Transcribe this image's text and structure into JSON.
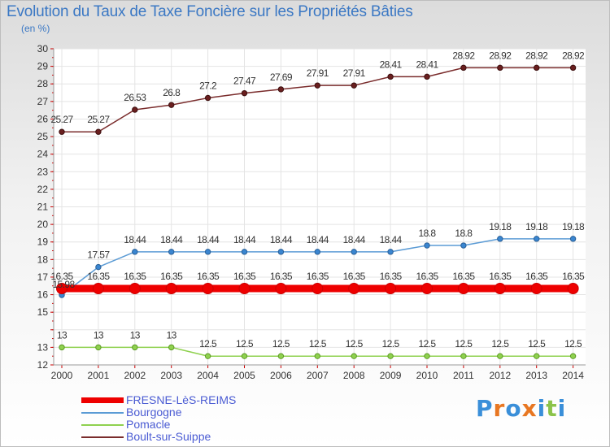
{
  "title": "Evolution du Taux de Taxe Foncière sur les Propriétés Bâties",
  "unit": "(en %)",
  "logo": {
    "text": "Proxiti",
    "letters": [
      "P",
      "r",
      "o",
      "x",
      "i",
      "t",
      "i"
    ],
    "colors": [
      "#3a8fd9",
      "#e87722",
      "#3a8fd9",
      "#e87722",
      "#3a8fd9",
      "#8bc34a",
      "#3a8fd9"
    ]
  },
  "chart_data": {
    "type": "line",
    "title": "Evolution du Taux de Taxe Foncière sur les Propriétés Bâties",
    "ylabel": "(en %)",
    "xlabel": "",
    "ylim": [
      12,
      30
    ],
    "yticks": [
      "12",
      "13",
      "15",
      "16",
      "17",
      "18",
      "19",
      "20",
      "21",
      "22",
      "23",
      "24",
      "25",
      "26",
      "27",
      "28",
      "29",
      "30"
    ],
    "categories": [
      "2000",
      "2001",
      "2002",
      "2003",
      "2004",
      "2005",
      "2006",
      "2007",
      "2008",
      "2009",
      "2010",
      "2011",
      "2012",
      "2013",
      "2014"
    ],
    "series": [
      {
        "name": "FRESNE-LèS-REIMS",
        "color": "#ee0000",
        "values": [
          16.35,
          16.35,
          16.35,
          16.35,
          16.35,
          16.35,
          16.35,
          16.35,
          16.35,
          16.35,
          16.35,
          16.35,
          16.35,
          16.35,
          16.35
        ],
        "labels": [
          "16.35",
          "16.35",
          "16.35",
          "16.35",
          "16.35",
          "16.35",
          "16.35",
          "16.35",
          "16.35",
          "16.35",
          "16.35",
          "16.35",
          "16.35",
          "16.35",
          "16.35"
        ]
      },
      {
        "name": "Bourgogne",
        "color": "#5b9bd5",
        "values": [
          15.98,
          17.57,
          18.44,
          18.44,
          18.44,
          18.44,
          18.44,
          18.44,
          18.44,
          18.44,
          18.8,
          18.8,
          19.18,
          19.18,
          19.18
        ],
        "labels": [
          "15.98",
          "17.57",
          "18.44",
          "18.44",
          "18.44",
          "18.44",
          "18.44",
          "18.44",
          "18.44",
          "18.44",
          "18.8",
          "18.8",
          "19.18",
          "19.18",
          "19.18"
        ]
      },
      {
        "name": "Pomacle",
        "color": "#8fd14f",
        "values": [
          13,
          13,
          13,
          13,
          12.5,
          12.5,
          12.5,
          12.5,
          12.5,
          12.5,
          12.5,
          12.5,
          12.5,
          12.5,
          12.5
        ],
        "labels": [
          "13",
          "13",
          "13",
          "13",
          "12.5",
          "12.5",
          "12.5",
          "12.5",
          "12.5",
          "12.5",
          "12.5",
          "12.5",
          "12.5",
          "12.5",
          "12.5"
        ]
      },
      {
        "name": "Boult-sur-Suippe",
        "color": "#7a2c2c",
        "values": [
          25.27,
          25.27,
          26.53,
          26.8,
          27.2,
          27.47,
          27.69,
          27.91,
          27.91,
          28.41,
          28.41,
          28.92,
          28.92,
          28.92,
          28.92
        ],
        "labels": [
          "25.27",
          "25.27",
          "26.53",
          "26.8",
          "27.2",
          "27.47",
          "27.69",
          "27.91",
          "27.91",
          "28.41",
          "28.41",
          "28.92",
          "28.92",
          "28.92",
          "28.92"
        ]
      }
    ],
    "legend_position": "bottom-left",
    "grid": true
  }
}
